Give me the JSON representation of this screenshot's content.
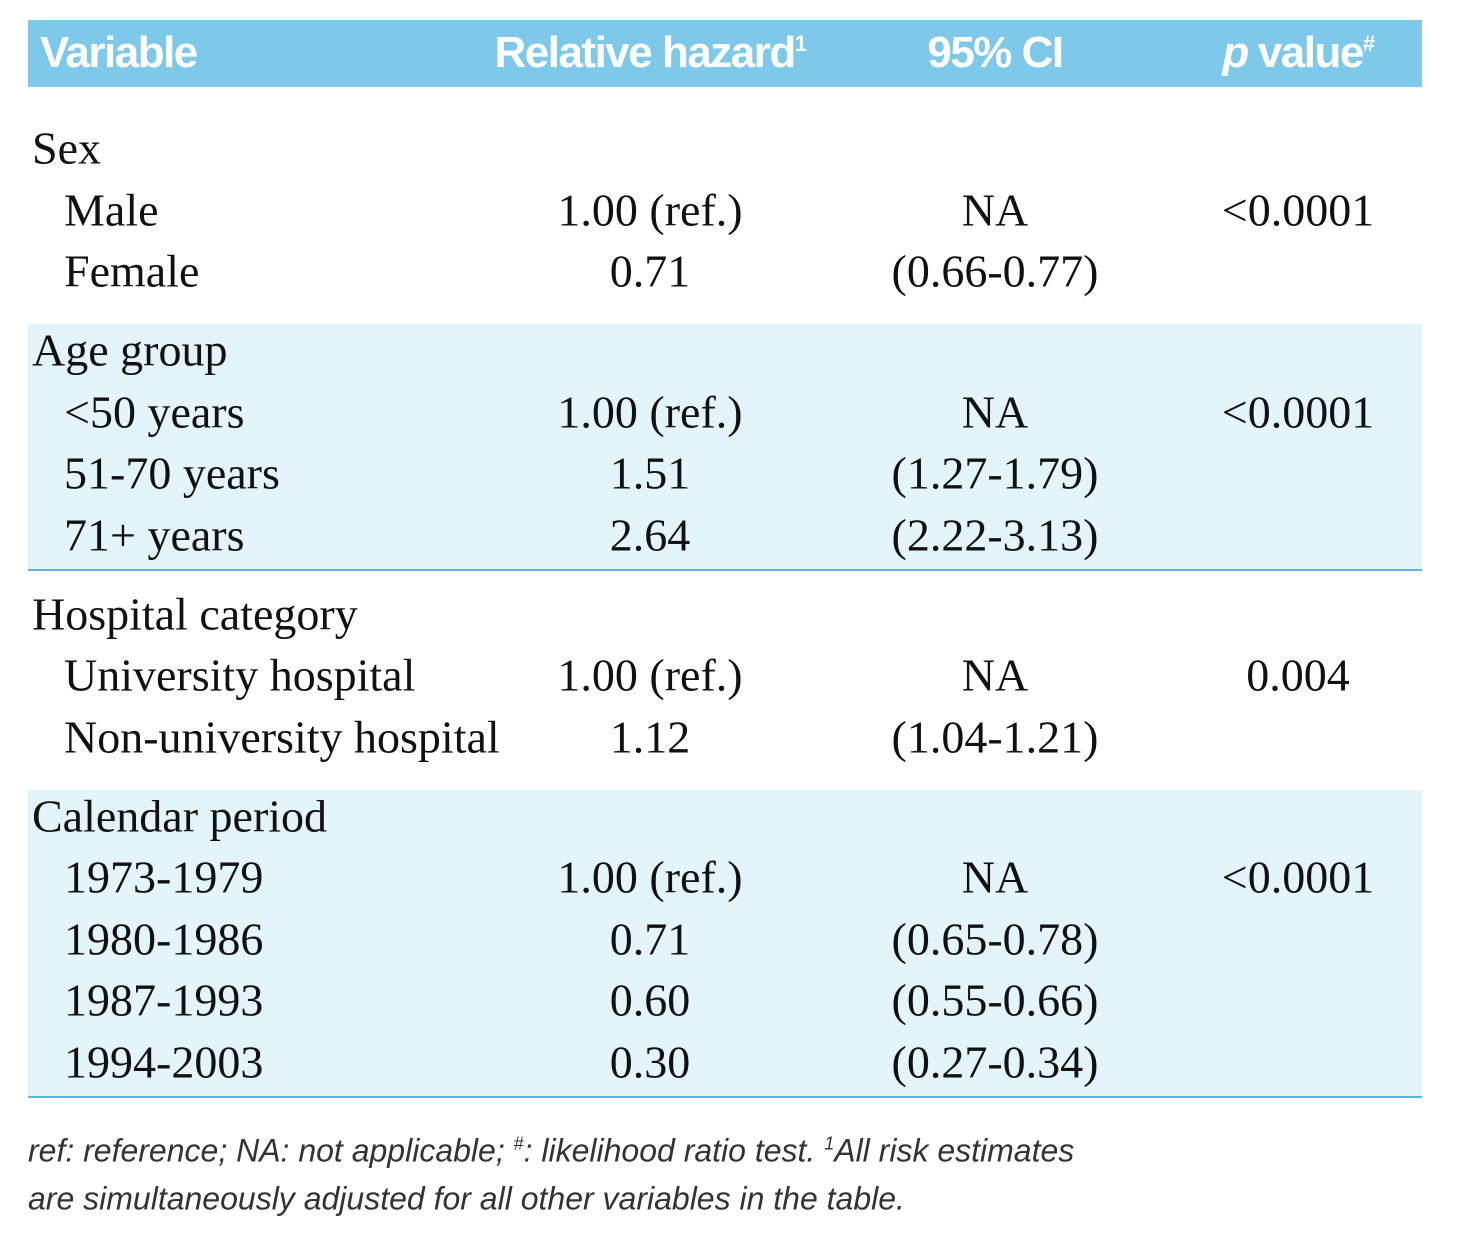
{
  "header": [
    {
      "text": "Variable"
    },
    {
      "text": "Relative hazard",
      "sup": "1"
    },
    {
      "text": "95% CI"
    },
    {
      "em": "p",
      "text": "value",
      "sup": "#"
    }
  ],
  "groups": [
    {
      "label": "Sex",
      "shaded": false,
      "rows": [
        {
          "label": "Male",
          "hazard": "1.00 (ref.)",
          "ci": "NA",
          "p": "<0.0001"
        },
        {
          "label": "Female",
          "hazard": "0.71",
          "ci": "(0.66-0.77)"
        }
      ]
    },
    {
      "label": "Age group",
      "shaded": true,
      "rows": [
        {
          "label": "<50 years",
          "hazard": "1.00 (ref.)",
          "ci": "NA",
          "p": "<0.0001"
        },
        {
          "label": "51-70 years",
          "hazard": "1.51",
          "ci": "(1.27-1.79)"
        },
        {
          "label": "71+ years",
          "hazard": "2.64",
          "ci": "(2.22-3.13)"
        }
      ]
    },
    {
      "label": "Hospital category",
      "shaded": false,
      "rows": [
        {
          "label": "University hospital",
          "hazard": "1.00 (ref.)",
          "ci": "NA",
          "p": "0.004"
        },
        {
          "label": "Non-university hospital",
          "hazard": "1.12",
          "ci": "(1.04-1.21)"
        }
      ]
    },
    {
      "label": "Calendar period",
      "shaded": true,
      "rows": [
        {
          "label": "1973-1979",
          "hazard": "1.00 (ref.)",
          "ci": "NA",
          "p": "<0.0001"
        },
        {
          "label": "1980-1986",
          "hazard": "0.71",
          "ci": "(0.65-0.78)"
        },
        {
          "label": "1987-1993",
          "hazard": "0.60",
          "ci": "(0.55-0.66)"
        },
        {
          "label": "1994-2003",
          "hazard": "0.30",
          "ci": "(0.27-0.34)"
        }
      ]
    }
  ],
  "footnote": {
    "line1": [
      {
        "text": "ref: reference; NA: not applicable; "
      },
      {
        "sup": "#"
      },
      {
        "text": ": likelihood ratio test. "
      },
      {
        "sup": "1"
      },
      {
        "text": "All risk estimates"
      }
    ],
    "line2": [
      {
        "text": "are simultaneously adjusted for all other variables in the table."
      }
    ]
  }
}
